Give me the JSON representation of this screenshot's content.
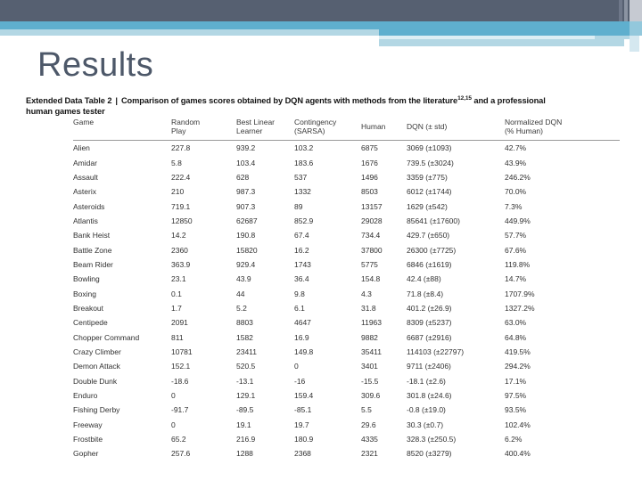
{
  "title": "Results",
  "caption": {
    "bold_label": "Extended Data Table 2",
    "divider": "|",
    "text_before_sup": "Comparison of games scores obtained by DQN agents with methods from the literature",
    "superscript": "12,15",
    "text_after_sup": " and a professional",
    "line2": "human games tester"
  },
  "table": {
    "columns": [
      {
        "line1": "Game",
        "line2": ""
      },
      {
        "line1": "Random",
        "line2": "Play"
      },
      {
        "line1": "Best Linear",
        "line2": "Learner"
      },
      {
        "line1": "Contingency",
        "line2": "(SARSA)"
      },
      {
        "line1": "Human",
        "line2": ""
      },
      {
        "line1": "DQN (± std)",
        "line2": ""
      },
      {
        "line1": "Normalized DQN",
        "line2": "(% Human)"
      }
    ],
    "rows": [
      [
        "Alien",
        "227.8",
        "939.2",
        "103.2",
        "6875",
        "3069 (±1093)",
        "42.7%"
      ],
      [
        "Amidar",
        "5.8",
        "103.4",
        "183.6",
        "1676",
        "739.5 (±3024)",
        "43.9%"
      ],
      [
        "Assault",
        "222.4",
        "628",
        "537",
        "1496",
        "3359 (±775)",
        "246.2%"
      ],
      [
        "Asterix",
        "210",
        "987.3",
        "1332",
        "8503",
        "6012 (±1744)",
        "70.0%"
      ],
      [
        "Asteroids",
        "719.1",
        "907.3",
        "89",
        "13157",
        "1629 (±542)",
        "7.3%"
      ],
      [
        "Atlantis",
        "12850",
        "62687",
        "852.9",
        "29028",
        "85641 (±17600)",
        "449.9%"
      ],
      [
        "Bank Heist",
        "14.2",
        "190.8",
        "67.4",
        "734.4",
        "429.7 (±650)",
        "57.7%"
      ],
      [
        "Battle Zone",
        "2360",
        "15820",
        "16.2",
        "37800",
        "26300 (±7725)",
        "67.6%"
      ],
      [
        "Beam Rider",
        "363.9",
        "929.4",
        "1743",
        "5775",
        "6846 (±1619)",
        "119.8%"
      ],
      [
        "Bowling",
        "23.1",
        "43.9",
        "36.4",
        "154.8",
        "42.4 (±88)",
        "14.7%"
      ],
      [
        "Boxing",
        "0.1",
        "44",
        "9.8",
        "4.3",
        "71.8 (±8.4)",
        "1707.9%"
      ],
      [
        "Breakout",
        "1.7",
        "5.2",
        "6.1",
        "31.8",
        "401.2 (±26.9)",
        "1327.2%"
      ],
      [
        "Centipede",
        "2091",
        "8803",
        "4647",
        "11963",
        "8309 (±5237)",
        "63.0%"
      ],
      [
        "Chopper Command",
        "811",
        "1582",
        "16.9",
        "9882",
        "6687 (±2916)",
        "64.8%"
      ],
      [
        "Crazy Climber",
        "10781",
        "23411",
        "149.8",
        "35411",
        "114103 (±22797)",
        "419.5%"
      ],
      [
        "Demon Attack",
        "152.1",
        "520.5",
        "0",
        "3401",
        "9711 (±2406)",
        "294.2%"
      ],
      [
        "Double Dunk",
        "-18.6",
        "-13.1",
        "-16",
        "-15.5",
        "-18.1 (±2.6)",
        "17.1%"
      ],
      [
        "Enduro",
        "0",
        "129.1",
        "159.4",
        "309.6",
        "301.8 (±24.6)",
        "97.5%"
      ],
      [
        "Fishing Derby",
        "-91.7",
        "-89.5",
        "-85.1",
        "5.5",
        "-0.8 (±19.0)",
        "93.5%"
      ],
      [
        "Freeway",
        "0",
        "19.1",
        "19.7",
        "29.6",
        "30.3 (±0.7)",
        "102.4%"
      ],
      [
        "Frostbite",
        "65.2",
        "216.9",
        "180.9",
        "4335",
        "328.3 (±250.5)",
        "6.2%"
      ],
      [
        "Gopher",
        "257.6",
        "1288",
        "2368",
        "2321",
        "8520 (±3279)",
        "400.4%"
      ]
    ]
  },
  "theme": {
    "banner_dark": "#566071",
    "banner_blue": "#5fafce",
    "banner_pale_blue": "#b3d7e4",
    "banner_silver": "#c6cad2",
    "title_color": "#4d5869"
  }
}
